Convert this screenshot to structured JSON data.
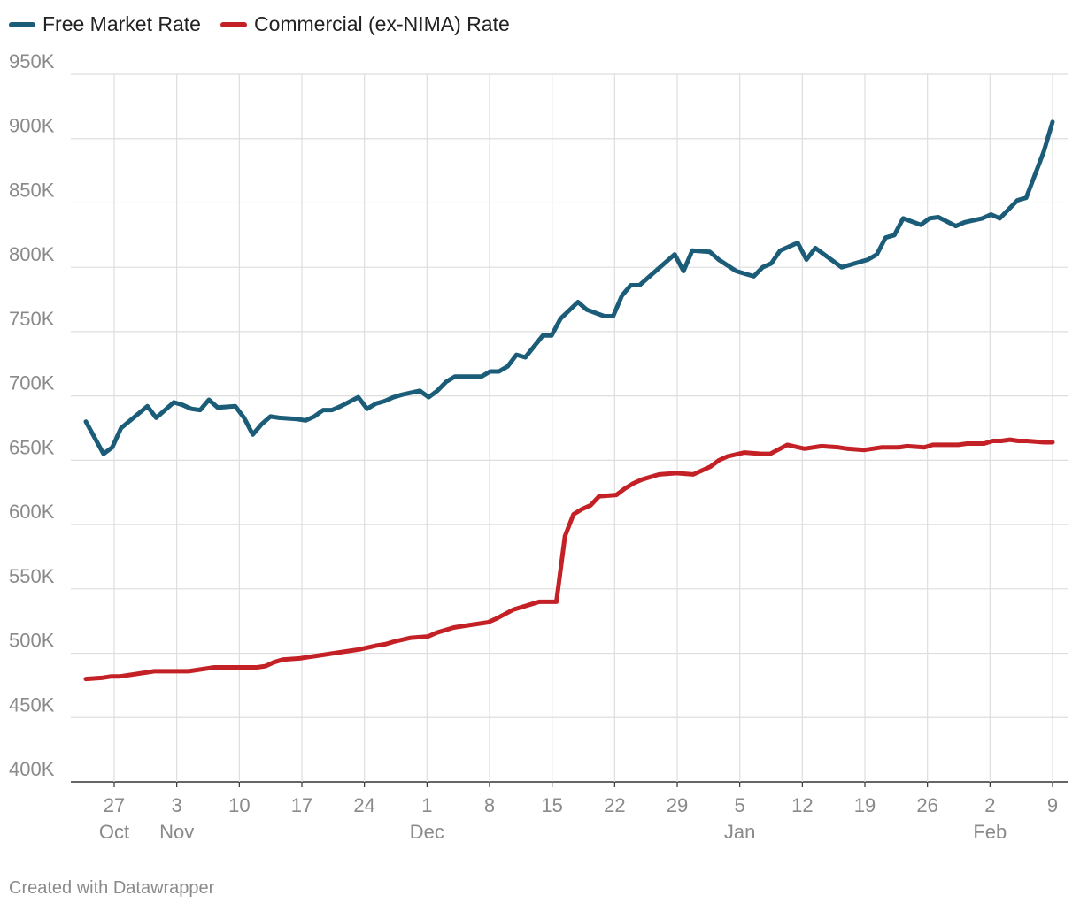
{
  "chart_data": {
    "type": "line",
    "title": "",
    "xlabel": "",
    "ylabel": "",
    "ylim": [
      400000,
      950000
    ],
    "xlim": [
      "2024-10-23",
      "2025-02-09"
    ],
    "legend_position": "top-left",
    "grid": true,
    "y_ticks": [
      {
        "value": 400000,
        "label": "400K"
      },
      {
        "value": 450000,
        "label": "450K"
      },
      {
        "value": 500000,
        "label": "500K"
      },
      {
        "value": 550000,
        "label": "550K"
      },
      {
        "value": 600000,
        "label": "600K"
      },
      {
        "value": 650000,
        "label": "650K"
      },
      {
        "value": 700000,
        "label": "700K"
      },
      {
        "value": 750000,
        "label": "750K"
      },
      {
        "value": 800000,
        "label": "800K"
      },
      {
        "value": 850000,
        "label": "850K"
      },
      {
        "value": 900000,
        "label": "900K"
      },
      {
        "value": 950000,
        "label": "950K"
      }
    ],
    "x_ticks": [
      {
        "date": "2024-10-27",
        "label": "27",
        "sublabel": "Oct"
      },
      {
        "date": "2024-11-03",
        "label": "3",
        "sublabel": "Nov"
      },
      {
        "date": "2024-11-10",
        "label": "10",
        "sublabel": ""
      },
      {
        "date": "2024-11-17",
        "label": "17",
        "sublabel": ""
      },
      {
        "date": "2024-11-24",
        "label": "24",
        "sublabel": ""
      },
      {
        "date": "2024-12-01",
        "label": "1",
        "sublabel": "Dec"
      },
      {
        "date": "2024-12-08",
        "label": "8",
        "sublabel": ""
      },
      {
        "date": "2024-12-15",
        "label": "15",
        "sublabel": ""
      },
      {
        "date": "2024-12-22",
        "label": "22",
        "sublabel": ""
      },
      {
        "date": "2024-12-29",
        "label": "29",
        "sublabel": ""
      },
      {
        "date": "2025-01-05",
        "label": "5",
        "sublabel": "Jan"
      },
      {
        "date": "2025-01-12",
        "label": "12",
        "sublabel": ""
      },
      {
        "date": "2025-01-19",
        "label": "19",
        "sublabel": ""
      },
      {
        "date": "2025-01-26",
        "label": "26",
        "sublabel": ""
      },
      {
        "date": "2025-02-02",
        "label": "2",
        "sublabel": "Feb"
      },
      {
        "date": "2025-02-09",
        "label": "9",
        "sublabel": ""
      }
    ],
    "series": [
      {
        "name": "Free Market Rate",
        "color": "#1b5d78",
        "points": [
          [
            "2024-10-25",
            680000
          ],
          [
            "2024-10-27",
            655000
          ],
          [
            "2024-10-28",
            660000
          ],
          [
            "2024-10-29",
            675000
          ],
          [
            "2024-11-01",
            692000
          ],
          [
            "2024-11-02",
            683000
          ],
          [
            "2024-11-04",
            695000
          ],
          [
            "2024-11-05",
            693000
          ],
          [
            "2024-11-06",
            690000
          ],
          [
            "2024-11-07",
            689000
          ],
          [
            "2024-11-08",
            697000
          ],
          [
            "2024-11-09",
            691000
          ],
          [
            "2024-11-11",
            692000
          ],
          [
            "2024-11-12",
            683000
          ],
          [
            "2024-11-13",
            670000
          ],
          [
            "2024-11-14",
            678000
          ],
          [
            "2024-11-15",
            684000
          ],
          [
            "2024-11-16",
            683000
          ],
          [
            "2024-11-18",
            682000
          ],
          [
            "2024-11-19",
            681000
          ],
          [
            "2024-11-20",
            684000
          ],
          [
            "2024-11-21",
            689000
          ],
          [
            "2024-11-22",
            689000
          ],
          [
            "2024-11-23",
            692000
          ],
          [
            "2024-11-25",
            699000
          ],
          [
            "2024-11-26",
            690000
          ],
          [
            "2024-11-27",
            694000
          ],
          [
            "2024-11-28",
            696000
          ],
          [
            "2024-11-29",
            699000
          ],
          [
            "2024-11-30",
            701000
          ],
          [
            "2024-12-02",
            704000
          ],
          [
            "2024-12-03",
            699000
          ],
          [
            "2024-12-04",
            704000
          ],
          [
            "2024-12-05",
            711000
          ],
          [
            "2024-12-06",
            715000
          ],
          [
            "2024-12-07",
            715000
          ],
          [
            "2024-12-09",
            715000
          ],
          [
            "2024-12-10",
            719000
          ],
          [
            "2024-12-11",
            719000
          ],
          [
            "2024-12-12",
            723000
          ],
          [
            "2024-12-13",
            732000
          ],
          [
            "2024-12-14",
            730000
          ],
          [
            "2024-12-16",
            747000
          ],
          [
            "2024-12-17",
            747000
          ],
          [
            "2024-12-18",
            760000
          ],
          [
            "2024-12-20",
            773000
          ],
          [
            "2024-12-21",
            767000
          ],
          [
            "2024-12-23",
            762000
          ],
          [
            "2024-12-24",
            762000
          ],
          [
            "2024-12-25",
            778000
          ],
          [
            "2024-12-26",
            786000
          ],
          [
            "2024-12-27",
            786000
          ],
          [
            "2024-12-28",
            792000
          ],
          [
            "2024-12-31",
            810000
          ],
          [
            "2025-01-01",
            797000
          ],
          [
            "2025-01-02",
            813000
          ],
          [
            "2025-01-04",
            812000
          ],
          [
            "2025-01-05",
            806000
          ],
          [
            "2025-01-07",
            797000
          ],
          [
            "2025-01-08",
            795000
          ],
          [
            "2025-01-09",
            793000
          ],
          [
            "2025-01-10",
            800000
          ],
          [
            "2025-01-11",
            803000
          ],
          [
            "2025-01-12",
            813000
          ],
          [
            "2025-01-14",
            819000
          ],
          [
            "2025-01-15",
            806000
          ],
          [
            "2025-01-16",
            815000
          ],
          [
            "2025-01-19",
            800000
          ],
          [
            "2025-01-21",
            804000
          ],
          [
            "2025-01-22",
            806000
          ],
          [
            "2025-01-23",
            810000
          ],
          [
            "2025-01-24",
            823000
          ],
          [
            "2025-01-25",
            825000
          ],
          [
            "2025-01-26",
            838000
          ],
          [
            "2025-01-28",
            833000
          ],
          [
            "2025-01-29",
            838000
          ],
          [
            "2025-01-30",
            839000
          ],
          [
            "2025-02-01",
            832000
          ],
          [
            "2025-02-02",
            835000
          ],
          [
            "2025-02-04",
            838000
          ],
          [
            "2025-02-05",
            841000
          ],
          [
            "2025-02-06",
            838000
          ],
          [
            "2025-02-08",
            852000
          ],
          [
            "2025-02-09",
            854000
          ],
          [
            "2025-02-11",
            890000
          ],
          [
            "2025-02-12",
            913000
          ]
        ]
      },
      {
        "name": "Commercial (ex-NIMA) Rate",
        "color": "#c42126",
        "points": [
          [
            "2024-10-25",
            480000
          ],
          [
            "2024-10-27",
            481000
          ],
          [
            "2024-10-28",
            482000
          ],
          [
            "2024-10-29",
            482000
          ],
          [
            "2024-11-01",
            485000
          ],
          [
            "2024-11-02",
            486000
          ],
          [
            "2024-11-04",
            486000
          ],
          [
            "2024-11-06",
            486000
          ],
          [
            "2024-11-08",
            488000
          ],
          [
            "2024-11-09",
            489000
          ],
          [
            "2024-11-11",
            489000
          ],
          [
            "2024-11-13",
            489000
          ],
          [
            "2024-11-14",
            489000
          ],
          [
            "2024-11-15",
            490000
          ],
          [
            "2024-11-16",
            493000
          ],
          [
            "2024-11-17",
            495000
          ],
          [
            "2024-11-19",
            496000
          ],
          [
            "2024-11-20",
            497000
          ],
          [
            "2024-11-22",
            499000
          ],
          [
            "2024-11-23",
            500000
          ],
          [
            "2024-11-25",
            502000
          ],
          [
            "2024-11-26",
            503000
          ],
          [
            "2024-11-28",
            506000
          ],
          [
            "2024-11-29",
            507000
          ],
          [
            "2024-11-30",
            509000
          ],
          [
            "2024-12-02",
            512000
          ],
          [
            "2024-12-04",
            513000
          ],
          [
            "2024-12-05",
            516000
          ],
          [
            "2024-12-07",
            520000
          ],
          [
            "2024-12-09",
            522000
          ],
          [
            "2024-12-11",
            524000
          ],
          [
            "2024-12-12",
            527000
          ],
          [
            "2024-12-14",
            534000
          ],
          [
            "2024-12-16",
            538000
          ],
          [
            "2024-12-17",
            540000
          ],
          [
            "2024-12-19",
            540000
          ],
          [
            "2024-12-20",
            591000
          ],
          [
            "2024-12-21",
            608000
          ],
          [
            "2024-12-22",
            612000
          ],
          [
            "2024-12-23",
            615000
          ],
          [
            "2024-12-24",
            622000
          ],
          [
            "2024-12-26",
            623000
          ],
          [
            "2024-12-27",
            628000
          ],
          [
            "2024-12-28",
            632000
          ],
          [
            "2024-12-29",
            635000
          ],
          [
            "2024-12-31",
            639000
          ],
          [
            "2025-01-02",
            640000
          ],
          [
            "2025-01-04",
            639000
          ],
          [
            "2025-01-05",
            642000
          ],
          [
            "2025-01-06",
            645000
          ],
          [
            "2025-01-07",
            650000
          ],
          [
            "2025-01-08",
            653000
          ],
          [
            "2025-01-10",
            656000
          ],
          [
            "2025-01-12",
            655000
          ],
          [
            "2025-01-13",
            655000
          ],
          [
            "2025-01-15",
            662000
          ],
          [
            "2025-01-17",
            659000
          ],
          [
            "2025-01-19",
            661000
          ],
          [
            "2025-01-21",
            660000
          ],
          [
            "2025-01-22",
            659000
          ],
          [
            "2025-01-24",
            658000
          ],
          [
            "2025-01-26",
            660000
          ],
          [
            "2025-01-28",
            660000
          ],
          [
            "2025-01-29",
            661000
          ],
          [
            "2025-01-31",
            660000
          ],
          [
            "2025-02-01",
            662000
          ],
          [
            "2025-02-02",
            662000
          ],
          [
            "2025-02-04",
            662000
          ],
          [
            "2025-02-05",
            663000
          ],
          [
            "2025-02-07",
            663000
          ],
          [
            "2025-02-08",
            665000
          ],
          [
            "2025-02-09",
            665000
          ],
          [
            "2025-02-10",
            666000
          ],
          [
            "2025-02-11",
            665000
          ],
          [
            "2025-02-12",
            665000
          ],
          [
            "2025-02-14",
            664000
          ],
          [
            "2025-02-15",
            664000
          ]
        ]
      }
    ]
  },
  "credit": "Created with Datawrapper"
}
